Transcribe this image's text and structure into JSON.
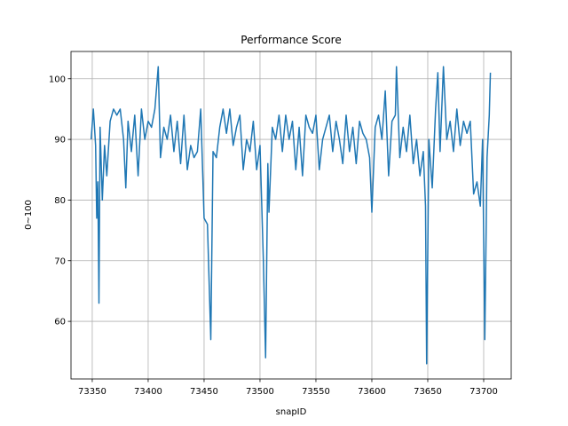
{
  "chart_data": {
    "type": "line",
    "title": "Performance Score",
    "xlabel": "snapID",
    "ylabel": "0~100",
    "x": [
      73349,
      73351,
      73353,
      73354,
      73355,
      73356,
      73357,
      73359,
      73361,
      73363,
      73366,
      73369,
      73372,
      73375,
      73378,
      73380,
      73382,
      73385,
      73388,
      73391,
      73394,
      73397,
      73400,
      73403,
      73406,
      73409,
      73411,
      73414,
      73417,
      73420,
      73423,
      73426,
      73429,
      73432,
      73435,
      73438,
      73441,
      73444,
      73447,
      73450,
      73453,
      73456,
      73458,
      73461,
      73464,
      73467,
      73470,
      73473,
      73476,
      73479,
      73482,
      73485,
      73488,
      73491,
      73494,
      73497,
      73500,
      73503,
      73505,
      73507,
      73508,
      73511,
      73514,
      73517,
      73520,
      73523,
      73526,
      73529,
      73532,
      73535,
      73538,
      73541,
      73544,
      73547,
      73550,
      73553,
      73556,
      73559,
      73562,
      73565,
      73568,
      73571,
      73574,
      73577,
      73580,
      73583,
      73586,
      73589,
      73592,
      73595,
      73598,
      73600,
      73603,
      73606,
      73609,
      73612,
      73615,
      73618,
      73621,
      73622,
      73625,
      73628,
      73631,
      73634,
      73637,
      73640,
      73643,
      73646,
      73648,
      73649,
      73651,
      73654,
      73657,
      73659,
      73661,
      73664,
      73667,
      73670,
      73673,
      73676,
      73679,
      73682,
      73685,
      73688,
      73691,
      73694,
      73697,
      73699,
      73701,
      73703,
      73705,
      73706
    ],
    "series": [
      {
        "name": null,
        "color": "#1f77b4",
        "values": [
          90,
          95,
          89,
          77,
          83,
          63,
          92,
          80,
          89,
          84,
          93,
          95,
          94,
          95,
          90,
          82,
          93,
          88,
          94,
          84,
          95,
          90,
          93,
          92,
          95,
          102,
          87,
          92,
          90,
          94,
          88,
          93,
          86,
          94,
          85,
          89,
          87,
          88,
          95,
          77,
          76,
          57,
          88,
          87,
          92,
          95,
          91,
          95,
          89,
          92,
          94,
          85,
          90,
          88,
          93,
          85,
          89,
          70,
          54,
          86,
          78,
          92,
          90,
          94,
          88,
          94,
          90,
          93,
          85,
          92,
          84,
          94,
          92,
          91,
          94,
          85,
          90,
          92,
          94,
          88,
          93,
          90,
          86,
          94,
          88,
          92,
          86,
          93,
          91,
          90,
          87,
          78,
          92,
          94,
          90,
          98,
          84,
          93,
          94,
          102,
          87,
          92,
          88,
          94,
          86,
          90,
          84,
          88,
          79,
          53,
          90,
          82,
          95,
          101,
          88,
          102,
          90,
          93,
          88,
          95,
          89,
          93,
          91,
          93,
          81,
          83,
          79,
          90,
          57,
          87,
          94,
          101
        ]
      }
    ],
    "xlim": [
      73331,
      73724.6
    ],
    "ylim": [
      50.5,
      104.5
    ],
    "xticks": [
      73350,
      73400,
      73450,
      73500,
      73550,
      73600,
      73650,
      73700
    ],
    "yticks": [
      60,
      70,
      80,
      90,
      100
    ],
    "grid": true
  }
}
